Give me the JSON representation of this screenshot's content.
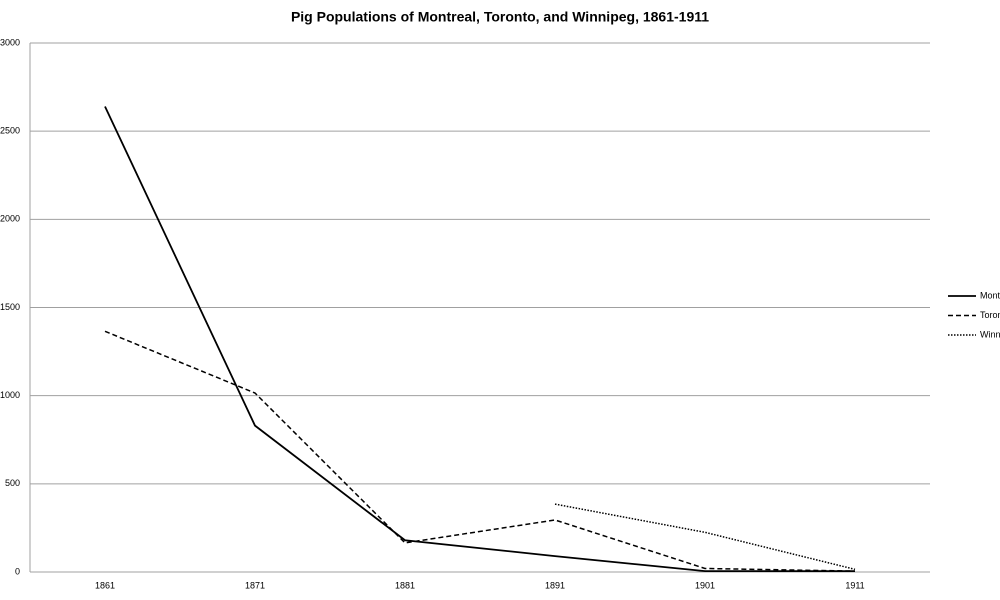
{
  "chart_data": {
    "type": "line",
    "title": "Pig Populations of Montreal, Toronto, and Winnipeg, 1861-1911",
    "categories": [
      "1861",
      "1871",
      "1881",
      "1891",
      "1901",
      "1911"
    ],
    "series": [
      {
        "name": "Montreal",
        "color": "#000000",
        "style": "solid",
        "values": [
          2640,
          830,
          180,
          90,
          5,
          5
        ]
      },
      {
        "name": "Toronto",
        "color": "#000000",
        "style": "dashed",
        "values": [
          1365,
          1015,
          165,
          295,
          20,
          5
        ]
      },
      {
        "name": "Winnipeg",
        "color": "#000000",
        "style": "dotted",
        "values": [
          null,
          null,
          null,
          385,
          225,
          15
        ]
      }
    ],
    "ylim": [
      0,
      3000
    ],
    "yticks": [
      0,
      500,
      1000,
      1500,
      2000,
      2500,
      3000
    ],
    "grid": true,
    "legend": "right"
  }
}
